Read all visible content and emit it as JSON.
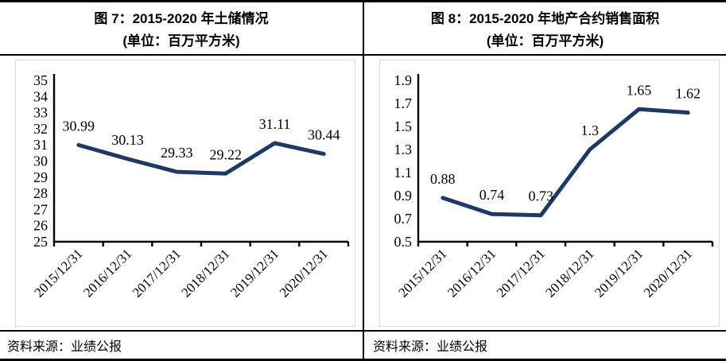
{
  "accent_color": "#1f3864",
  "frame_border_color": "#d9d9d9",
  "chart_data": [
    {
      "type": "line",
      "title": "图 7：2015-2020 年土储情况",
      "subtitle": "(单位：百万平方米)",
      "source": "资料来源：业绩公报",
      "x": [
        "2015/12/31",
        "2016/12/31",
        "2017/12/31",
        "2018/12/31",
        "2019/12/31",
        "2020/12/31"
      ],
      "values": [
        30.99,
        30.13,
        29.33,
        29.22,
        31.11,
        30.44
      ],
      "value_labels": [
        "30.99",
        "30.13",
        "29.33",
        "29.22",
        "31.11",
        "30.44"
      ],
      "ylim": [
        25,
        35
      ],
      "yticks": [
        "35",
        "34",
        "33",
        "32",
        "31",
        "30",
        "29",
        "28",
        "27",
        "26",
        "25"
      ],
      "xlabel": "",
      "ylabel": "",
      "grid": false,
      "legend": "none",
      "line_color": "#1f3864"
    },
    {
      "type": "line",
      "title": "图 8：2015-2020 年地产合约销售面积",
      "subtitle": "(单位：百万平方米)",
      "source": "资料来源：业绩公报",
      "x": [
        "2015/12/31",
        "2016/12/31",
        "2017/12/31",
        "2018/12/31",
        "2019/12/31",
        "2020/12/31"
      ],
      "values": [
        0.88,
        0.74,
        0.73,
        1.3,
        1.65,
        1.62
      ],
      "value_labels": [
        "0.88",
        "0.74",
        "0.73",
        "1.3",
        "1.65",
        "1.62"
      ],
      "ylim": [
        0.5,
        1.9
      ],
      "yticks": [
        "1.9",
        "1.7",
        "1.5",
        "1.3",
        "1.1",
        "0.9",
        "0.7",
        "0.5"
      ],
      "xlabel": "",
      "ylabel": "",
      "grid": false,
      "legend": "none",
      "line_color": "#1f3864"
    }
  ]
}
